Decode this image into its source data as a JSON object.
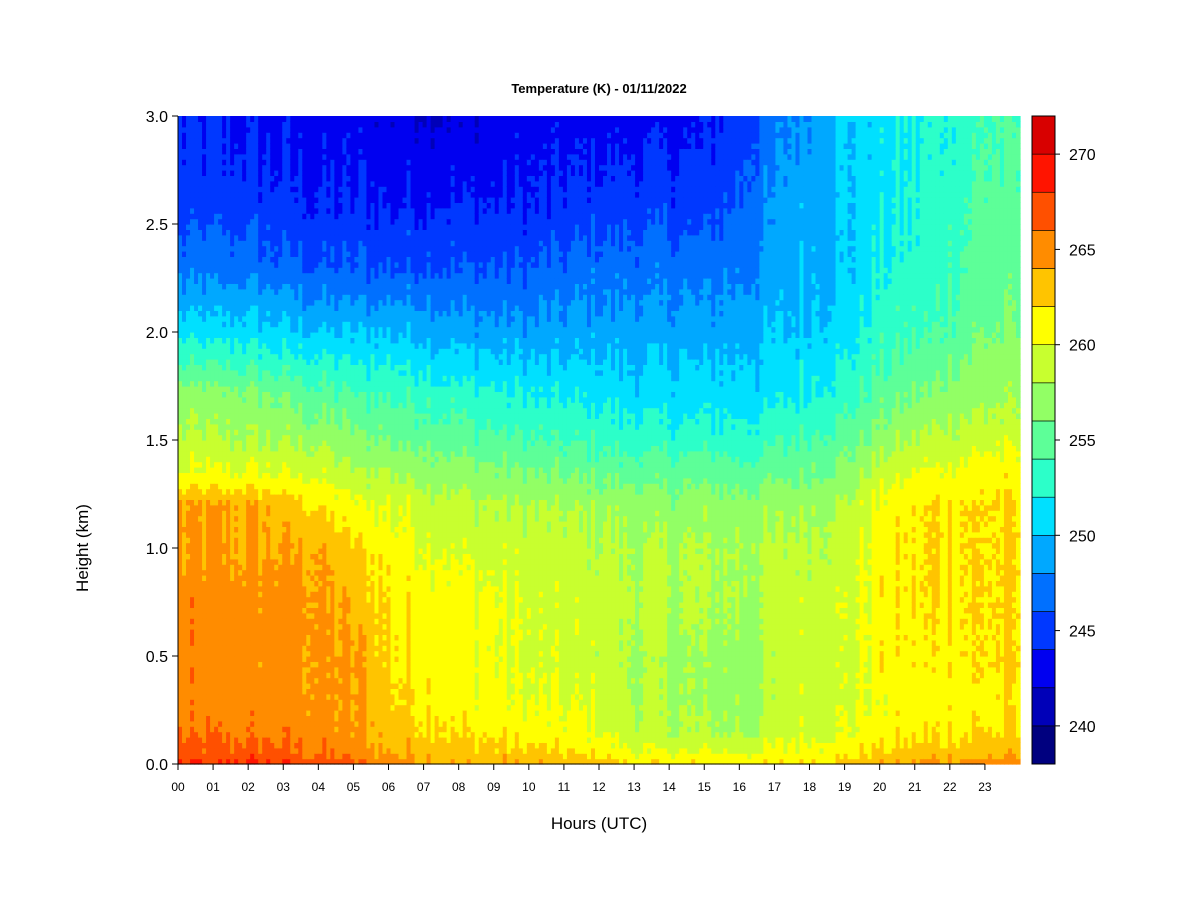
{
  "chart_data": {
    "type": "heatmap",
    "title": "Temperature (K) - 01/11/2022",
    "xlabel": "Hours (UTC)",
    "ylabel": "Height (km)",
    "xlim": [
      0,
      24
    ],
    "ylim": [
      0,
      3
    ],
    "x_ticks": [
      0,
      1,
      2,
      3,
      4,
      5,
      6,
      7,
      8,
      9,
      10,
      11,
      12,
      13,
      14,
      15,
      16,
      17,
      18,
      19,
      20,
      21,
      22,
      23
    ],
    "x_tick_labels": [
      "00",
      "01",
      "02",
      "03",
      "04",
      "05",
      "06",
      "07",
      "08",
      "09",
      "10",
      "11",
      "12",
      "13",
      "14",
      "15",
      "16",
      "17",
      "18",
      "19",
      "20",
      "21",
      "22",
      "23"
    ],
    "y_ticks": [
      0.0,
      0.5,
      1.0,
      1.5,
      2.0,
      2.5,
      3.0
    ],
    "y_tick_labels": [
      "0.0",
      "0.5",
      "1.0",
      "1.5",
      "2.0",
      "2.5",
      "3.0"
    ],
    "grid": false,
    "colorbar": {
      "placement": "right",
      "range": [
        238,
        272
      ],
      "levels": [
        238,
        240,
        242,
        244,
        246,
        248,
        250,
        252,
        254,
        256,
        258,
        260,
        262,
        264,
        266,
        268,
        270,
        272
      ],
      "colors": [
        "#00007F",
        "#0000B8",
        "#0000F0",
        "#0038FF",
        "#0070FF",
        "#00A8FF",
        "#00E0FF",
        "#2CFFC9",
        "#5DFF98",
        "#92FF65",
        "#C8FF2F",
        "#FFFF00",
        "#FFC400",
        "#FF8C00",
        "#FF5000",
        "#FF1400",
        "#D80000",
        "#8B0000"
      ],
      "ticks": [
        240,
        245,
        250,
        255,
        260,
        265,
        270
      ],
      "tick_labels": [
        "240",
        "245",
        "250",
        "255",
        "260",
        "265",
        "270"
      ]
    },
    "heights_km": [
      0.0,
      0.05,
      0.15,
      0.3,
      0.5,
      0.75,
      1.0,
      1.2,
      1.35,
      1.5,
      1.7,
      2.0,
      2.3,
      2.6,
      3.0
    ],
    "profiles": [
      {
        "hour": 0,
        "temps_K": [
          268,
          267,
          265.5,
          265,
          265,
          265,
          264,
          264,
          260,
          258.5,
          257,
          251,
          247,
          245,
          244
        ]
      },
      {
        "hour": 2,
        "temps_K": [
          268,
          267,
          265.5,
          265,
          265,
          265,
          264,
          264,
          260,
          258,
          256.5,
          251,
          247,
          245,
          243.5
        ]
      },
      {
        "hour": 4,
        "temps_K": [
          267,
          266,
          265,
          264.5,
          264.5,
          264.5,
          264,
          262,
          259.5,
          257.5,
          255,
          250,
          246,
          244,
          243
        ]
      },
      {
        "hour": 5.3,
        "temps_K": [
          266,
          265,
          264,
          264,
          264,
          263,
          262,
          260,
          258,
          256.5,
          254,
          250,
          246,
          244,
          243
        ]
      },
      {
        "hour": 6,
        "temps_K": [
          265,
          264,
          263,
          262.5,
          262,
          262,
          261,
          260,
          258,
          256,
          254,
          250,
          246,
          244,
          242.5
        ]
      },
      {
        "hour": 8,
        "temps_K": [
          264,
          263,
          262,
          261,
          261,
          261,
          259.5,
          258.5,
          257,
          255,
          253,
          249,
          246,
          244,
          242
        ]
      },
      {
        "hour": 10,
        "temps_K": [
          264,
          262.5,
          261,
          260,
          259.5,
          259.5,
          259,
          258,
          256,
          254,
          252,
          248.5,
          246,
          244,
          243
        ]
      },
      {
        "hour": 12,
        "temps_K": [
          263,
          261.5,
          260,
          259.5,
          259,
          259,
          258.5,
          257.5,
          255.5,
          253.5,
          251.5,
          249,
          247,
          245,
          243
        ]
      },
      {
        "hour": 13,
        "temps_K": [
          262,
          260,
          258.5,
          258,
          258,
          258.5,
          258,
          257,
          255,
          253,
          251,
          249,
          247,
          245,
          243
        ]
      },
      {
        "hour": 15,
        "temps_K": [
          262,
          260,
          258,
          257.5,
          257.5,
          258,
          258,
          257,
          255,
          253,
          251,
          249,
          247,
          245,
          243.5
        ]
      },
      {
        "hour": 16.5,
        "temps_K": [
          262,
          260,
          258,
          257.5,
          257.5,
          258,
          258,
          257,
          255,
          253,
          251,
          249.5,
          248,
          247,
          246
        ]
      },
      {
        "hour": 17.5,
        "temps_K": [
          262,
          260.5,
          259.5,
          259,
          259,
          259,
          258.5,
          257.5,
          255.5,
          254,
          252,
          250,
          249.5,
          249,
          248
        ]
      },
      {
        "hour": 19,
        "temps_K": [
          263,
          261.5,
          260,
          259.5,
          259.5,
          259.5,
          259,
          258,
          256.5,
          255,
          253,
          251,
          250,
          250,
          250
        ]
      },
      {
        "hour": 20,
        "temps_K": [
          264,
          262.5,
          261,
          260.5,
          261,
          261,
          261,
          260.5,
          259,
          257,
          255,
          253,
          252,
          251.5,
          251
        ]
      },
      {
        "hour": 21.5,
        "temps_K": [
          264.5,
          263,
          261.5,
          261,
          261.5,
          262,
          262,
          262,
          260.5,
          258.5,
          256.5,
          254,
          253,
          252.5,
          252
        ]
      },
      {
        "hour": 23,
        "temps_K": [
          265,
          263.5,
          262,
          261.5,
          262,
          262,
          262,
          262,
          261,
          259.5,
          257.5,
          256,
          255,
          254.5,
          254
        ]
      },
      {
        "hour": 24,
        "temps_K": [
          265,
          263.5,
          262,
          261.5,
          262,
          262,
          262,
          262,
          261,
          259.5,
          257.5,
          256,
          255,
          254.5,
          254
        ]
      }
    ]
  }
}
